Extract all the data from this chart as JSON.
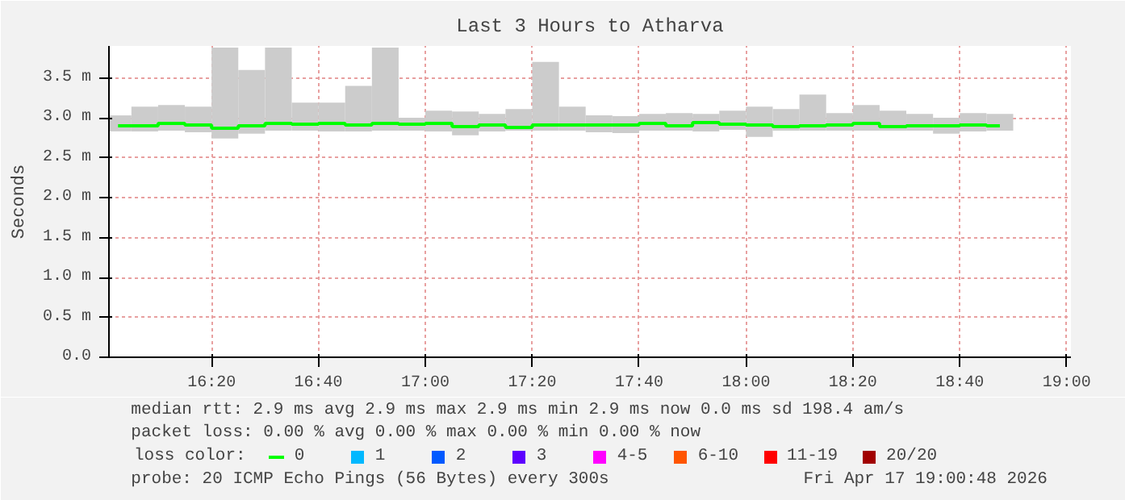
{
  "chart_data": {
    "type": "bar",
    "title": "Last 3 Hours to Atharva",
    "ylabel": "Seconds",
    "legend_title": "loss color:",
    "x": [
      16.0417,
      16.125,
      16.2083,
      16.2917,
      16.375,
      16.4583,
      16.5417,
      16.625,
      16.7083,
      16.7917,
      16.875,
      16.9583,
      17.0417,
      17.125,
      17.2083,
      17.2917,
      17.375,
      17.4583,
      17.5417,
      17.625,
      17.7083,
      17.7917,
      17.875,
      17.9583,
      18.0417,
      18.125,
      18.2083,
      18.2917,
      18.375,
      18.4583,
      18.5417,
      18.625,
      18.7083,
      18.7917
    ],
    "series": [
      {
        "color": "#cccccc",
        "base": [
          2.83,
          2.83,
          2.84,
          2.82,
          2.74,
          2.8,
          2.84,
          2.84,
          2.83,
          2.83,
          2.84,
          2.84,
          2.83,
          2.78,
          2.83,
          2.84,
          2.84,
          2.84,
          2.82,
          2.81,
          2.84,
          2.84,
          2.83,
          2.85,
          2.76,
          2.84,
          2.84,
          2.84,
          2.84,
          2.84,
          2.84,
          2.8,
          2.83,
          2.84
        ],
        "values": [
          0.2,
          0.31,
          0.32,
          0.32,
          1.14,
          0.8,
          1.04,
          0.35,
          0.36,
          0.57,
          1.04,
          0.16,
          0.26,
          0.3,
          0.22,
          0.27,
          0.86,
          0.3,
          0.21,
          0.21,
          0.21,
          0.22,
          0.22,
          0.24,
          0.38,
          0.27,
          0.45,
          0.22,
          0.32,
          0.25,
          0.21,
          0.2,
          0.23,
          0.21
        ]
      },
      {
        "type": "step",
        "name": "0",
        "color": "#00ff00",
        "values": [
          2.9,
          2.9,
          2.93,
          2.91,
          2.87,
          2.9,
          2.93,
          2.92,
          2.93,
          2.91,
          2.93,
          2.92,
          2.93,
          2.89,
          2.91,
          2.88,
          2.91,
          2.91,
          2.91,
          2.91,
          2.93,
          2.9,
          2.94,
          2.92,
          2.91,
          2.89,
          2.9,
          2.91,
          2.93,
          2.89,
          2.9,
          2.9,
          2.91,
          2.9
        ]
      },
      {
        "name": "1",
        "color": "#00b8ff",
        "values": [
          null,
          null,
          null,
          null,
          null,
          null,
          null,
          null,
          null,
          null,
          null,
          null,
          null,
          null,
          null,
          null,
          null,
          null,
          null,
          null,
          null,
          null,
          null,
          null,
          null,
          null,
          null,
          null,
          null,
          null,
          null,
          null,
          null,
          null
        ]
      },
      {
        "name": "2",
        "color": "#0059ff",
        "values": [
          null,
          null,
          null,
          null,
          null,
          null,
          null,
          null,
          null,
          null,
          null,
          null,
          null,
          null,
          null,
          null,
          null,
          null,
          null,
          null,
          null,
          null,
          null,
          null,
          null,
          null,
          null,
          null,
          null,
          null,
          null,
          null,
          null,
          null
        ]
      },
      {
        "name": "3",
        "color": "#5e00ff",
        "values": [
          null,
          null,
          null,
          null,
          null,
          null,
          null,
          null,
          null,
          null,
          null,
          null,
          null,
          null,
          null,
          null,
          null,
          null,
          null,
          null,
          null,
          null,
          null,
          null,
          null,
          null,
          null,
          null,
          null,
          null,
          null,
          null,
          null,
          null
        ]
      },
      {
        "name": "4-5",
        "color": "#ff00ff",
        "values": [
          null,
          null,
          null,
          null,
          null,
          null,
          null,
          null,
          null,
          null,
          null,
          null,
          null,
          null,
          null,
          null,
          null,
          null,
          null,
          null,
          null,
          null,
          null,
          null,
          null,
          null,
          null,
          null,
          null,
          null,
          null,
          null,
          null,
          null
        ]
      },
      {
        "name": "6-10",
        "color": "#ff5500",
        "values": [
          null,
          null,
          null,
          null,
          null,
          null,
          null,
          null,
          null,
          null,
          null,
          null,
          null,
          null,
          null,
          null,
          null,
          null,
          null,
          null,
          null,
          null,
          null,
          null,
          null,
          null,
          null,
          null,
          null,
          null,
          null,
          null,
          null,
          null
        ]
      },
      {
        "name": "11-19",
        "color": "#ff0000",
        "values": [
          null,
          null,
          null,
          null,
          null,
          null,
          null,
          null,
          null,
          null,
          null,
          null,
          null,
          null,
          null,
          null,
          null,
          null,
          null,
          null,
          null,
          null,
          null,
          null,
          null,
          null,
          null,
          null,
          null,
          null,
          null,
          null,
          null,
          null
        ]
      },
      {
        "name": "20/20",
        "color": "#a10000",
        "values": [
          null,
          null,
          null,
          null,
          null,
          null,
          null,
          null,
          null,
          null,
          null,
          null,
          null,
          null,
          null,
          null,
          null,
          null,
          null,
          null,
          null,
          null,
          null,
          null,
          null,
          null,
          null,
          null,
          null,
          null,
          null,
          null,
          null,
          null
        ]
      }
    ],
    "xlim": [
      16.0133,
      19.0133
    ],
    "xticks": [
      {
        "value": 16.3333,
        "label": "16:20"
      },
      {
        "value": 16.6667,
        "label": "16:40"
      },
      {
        "value": 17,
        "label": "17:00"
      },
      {
        "value": 17.3333,
        "label": "17:20"
      },
      {
        "value": 17.6667,
        "label": "17:40"
      },
      {
        "value": 18,
        "label": "18:00"
      },
      {
        "value": 18.3333,
        "label": "18:20"
      },
      {
        "value": 18.6667,
        "label": "18:40"
      },
      {
        "value": 19,
        "label": "19:00"
      }
    ],
    "ylim": [
      0,
      3.9
    ],
    "yticks": [
      {
        "value": 0,
        "label": "0.0"
      },
      {
        "value": 0.5,
        "label": "0.5 m"
      },
      {
        "value": 1,
        "label": "1.0 m"
      },
      {
        "value": 1.5,
        "label": "1.5 m"
      },
      {
        "value": 2,
        "label": "2.0 m"
      },
      {
        "value": 2.5,
        "label": "2.5 m"
      },
      {
        "value": 3,
        "label": "3.0 m"
      },
      {
        "value": 3.5,
        "label": "3.5 m"
      }
    ],
    "grid": true,
    "legend": "bottom",
    "annotations": [
      "median rtt:  2.9 ms avg  2.9 ms max  2.9 ms min  2.9 ms now  0.0 ms sd  198.4   am/s",
      "packet loss: 0.00 % avg  0.00 % max  0.00 % min  0.00 % now",
      "probe:       20 ICMP Echo Pings (56 Bytes) every 300s",
      "Fri Apr 17 19:00:48 2026"
    ]
  }
}
